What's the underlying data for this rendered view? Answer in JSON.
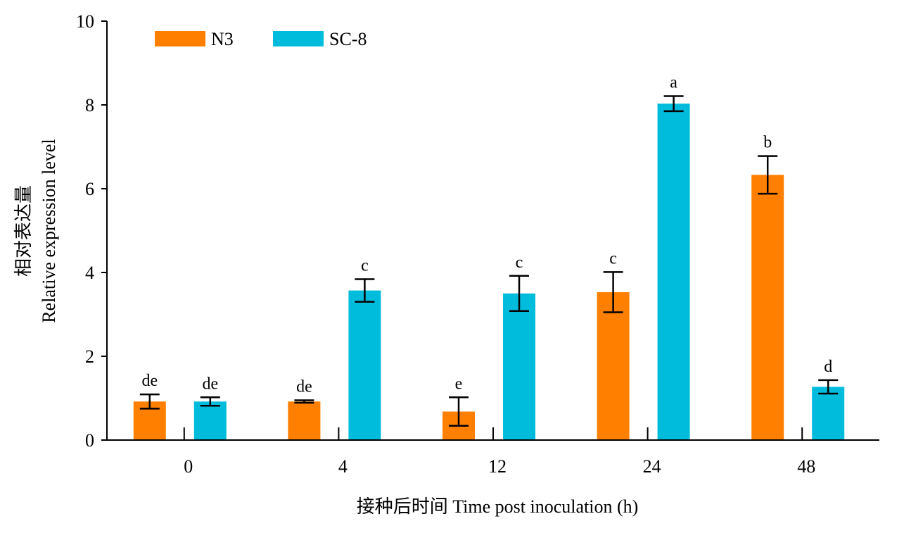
{
  "chart_data": {
    "type": "bar",
    "title": "",
    "xlabel": "接种后时间 Time post inoculation (h)",
    "ylabel_line1": "相对表达量",
    "ylabel_line2": "Relative expression level",
    "categories": [
      "0",
      "4",
      "12",
      "24",
      "48"
    ],
    "ylim": [
      0,
      10
    ],
    "yticks": [
      "0",
      "2",
      "4",
      "6",
      "8",
      "10"
    ],
    "grid": false,
    "legend_position": "top-left",
    "series": [
      {
        "name": "N3",
        "color": "#FF8000",
        "values": [
          0.92,
          0.92,
          0.68,
          3.53,
          6.33
        ],
        "errors": [
          0.17,
          0.03,
          0.34,
          0.48,
          0.45
        ],
        "labels": [
          "de",
          "de",
          "e",
          "c",
          "b"
        ]
      },
      {
        "name": "SC-8",
        "color": "#00BCDC",
        "values": [
          0.92,
          3.57,
          3.5,
          8.03,
          1.27
        ],
        "errors": [
          0.1,
          0.27,
          0.42,
          0.18,
          0.16
        ],
        "labels": [
          "de",
          "c",
          "c",
          "a",
          "d"
        ]
      }
    ]
  }
}
